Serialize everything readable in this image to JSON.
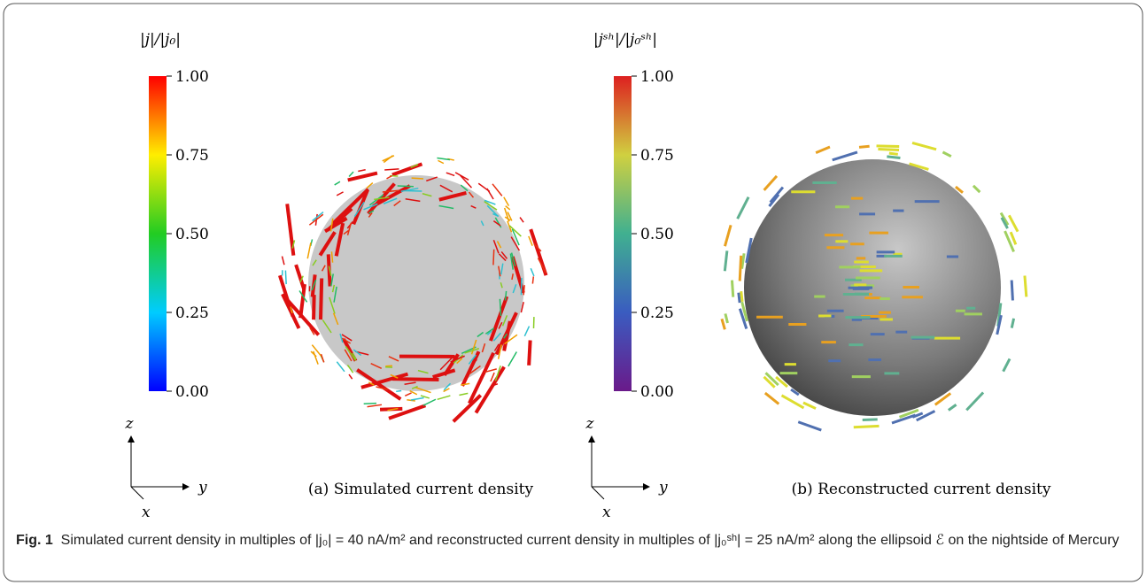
{
  "figure": {
    "panels": [
      {
        "colorbar_label": "|j|/|j₀|",
        "colorbar_ticks": [
          "1.00",
          "0.75",
          "0.50",
          "0.25",
          "0.00"
        ],
        "subcaption": "(a) Simulated current density",
        "axes": {
          "z": "z",
          "y": "y",
          "x": "x"
        }
      },
      {
        "colorbar_label": "|jˢʰ|/|j₀ˢʰ|",
        "colorbar_ticks": [
          "1.00",
          "0.75",
          "0.50",
          "0.25",
          "0.00"
        ],
        "subcaption": "(b) Reconstructed current density",
        "axes": {
          "z": "z",
          "y": "y",
          "x": "x"
        }
      }
    ],
    "caption": {
      "label": "Fig. 1",
      "text": "Simulated current density in multiples of |j₀| = 40 nA/m² and reconstructed current density in multiples of |j₀ˢʰ| = 25 nA/m² along the ellipsoid ℰ on the nightside of Mercury"
    }
  }
}
